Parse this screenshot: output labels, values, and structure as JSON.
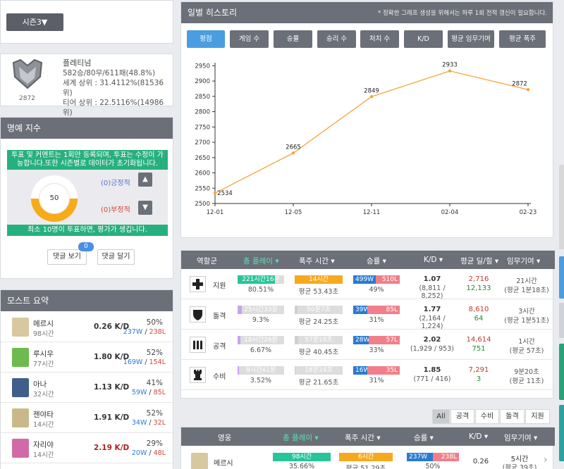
{
  "season": {
    "label": "시즌3▼"
  },
  "tier": {
    "name": "플레티넘",
    "record": "582승/80무/611패(48.8%)",
    "world": "세계 상위 : 31.4112%(81536위)",
    "tier_rank": "티어 상위 : 22.5116%(14986위)",
    "score": "2872"
  },
  "honor": {
    "title": "명예 지수",
    "notice": "투표 및 커멘트는 1회만 등록되며, 투표는 수정이 가능합니다.또한 시즌별로 데이터가 초기화됩니다.",
    "value": "50",
    "fill_fraction": 0.5,
    "positive": "(0)긍정적",
    "negative": "(0)부정적",
    "up": "▲",
    "down": "▼",
    "bottom": "최소 10명이 투표하면, 평가가 생깁니다.",
    "view_comments": "댓글 보기",
    "comment_count": "0",
    "write_comment": "댓글 달기"
  },
  "most": {
    "title": "모스트 요약",
    "heroes": [
      {
        "name": "메르시",
        "hours": "98시간",
        "kd": "0.26 K/D",
        "winrate": "50%",
        "w": "237W",
        "l": "238L",
        "kd_color": "#333333",
        "color": "#d8c8a0"
      },
      {
        "name": "루시우",
        "hours": "77시간",
        "kd": "1.80 K/D",
        "winrate": "52%",
        "w": "169W",
        "l": "154L",
        "kd_color": "#333333",
        "color": "#6dbb4e"
      },
      {
        "name": "아나",
        "hours": "32시간",
        "kd": "1.13 K/D",
        "winrate": "41%",
        "w": "59W",
        "l": "85L",
        "kd_color": "#333333",
        "color": "#3e5f8a"
      },
      {
        "name": "젠야타",
        "hours": "14시간",
        "kd": "1.91 K/D",
        "winrate": "52%",
        "w": "34W",
        "l": "32L",
        "kd_color": "#333333",
        "color": "#c9b98a"
      },
      {
        "name": "자리야",
        "hours": "14시간",
        "kd": "2.19 K/D",
        "winrate": "29%",
        "w": "20W",
        "l": "48L",
        "kd_color": "#b02020",
        "color": "#d16ba8"
      }
    ]
  },
  "history": {
    "title": "일별 히스토리",
    "note": "* 정확한 그래프 생성을 위해서는 하루 1회 전적 갱신이 필요합니다.",
    "tabs": [
      "평점",
      "게임 수",
      "승률",
      "승리 수",
      "처치 수",
      "K/D",
      "평균 임무기여",
      "평균 폭주"
    ]
  },
  "chart_data": {
    "type": "line",
    "x": [
      "12-01",
      "12-05",
      "12-11",
      "02-04",
      "02-23"
    ],
    "values": [
      2534,
      2665,
      2849,
      2933,
      2872
    ],
    "yticks": [
      2500,
      2550,
      2600,
      2650,
      2700,
      2750,
      2800,
      2850,
      2900,
      2950
    ],
    "ylim": [
      2500,
      2960
    ],
    "color": "#f7a43b"
  },
  "roles": {
    "headers": [
      "역할군",
      "총 플레이 ▾",
      "폭주 시간 ▾",
      "승률 ▾",
      "K/D ▾",
      "평균 딜/힐 ▾",
      "임무기여 ▾"
    ],
    "rows": [
      {
        "name": "지원",
        "icon": "plus-icon",
        "play": "221시간16분",
        "play_pct": "80.51%",
        "play_fill": 0.805,
        "burst": "14시간",
        "burst_avg": "평균 53.43초",
        "burst_fill": 1.0,
        "w": "499W",
        "l": "510L",
        "w_frac": 0.49,
        "wr": "49%",
        "kd": "1.07",
        "kd_sub": "(8,811 / 8,252)",
        "dmg": "2,716",
        "heal": "12,133",
        "obj": "21시간",
        "obj_sub": "(평균 1분18초)"
      },
      {
        "name": "돌격",
        "icon": "shield-icon",
        "play": "25시간33분",
        "play_pct": "9.3%",
        "play_fill": 0.093,
        "burst": "50분7초",
        "burst_avg": "평균 24.25초",
        "burst_fill": 0.06,
        "w": "39W",
        "l": "85L",
        "w_frac": 0.31,
        "wr": "31%",
        "kd": "1.77",
        "kd_sub": "(2,164 / 1,224)",
        "dmg": "8,610",
        "heal": "64",
        "obj": "3시간",
        "obj_sub": "(평균 1분51초)"
      },
      {
        "name": "공격",
        "icon": "bullets-icon",
        "play": "18시간26분",
        "play_pct": "6.67%",
        "play_fill": 0.067,
        "burst": "57분18초",
        "burst_avg": "평균 40.45초",
        "burst_fill": 0.07,
        "w": "28W",
        "l": "57L",
        "w_frac": 0.33,
        "wr": "33%",
        "kd": "2.02",
        "kd_sub": "(1,929 / 953)",
        "dmg": "14,614",
        "heal": "751",
        "obj": "1시간",
        "obj_sub": "(평균 57초)"
      },
      {
        "name": "수비",
        "icon": "rook-icon",
        "play": "9시간41분",
        "play_pct": "3.52%",
        "play_fill": 0.035,
        "burst": "18분24초",
        "burst_avg": "평균 21.65초",
        "burst_fill": 0.02,
        "w": "16W",
        "l": "35L",
        "w_frac": 0.31,
        "wr": "31%",
        "kd": "1.85",
        "kd_sub": "(771 / 416)",
        "dmg": "7,291",
        "heal": "3",
        "obj": "9분20초",
        "obj_sub": "(평균 11초)"
      }
    ]
  },
  "filters": [
    "All",
    "공격",
    "수비",
    "돌격",
    "지원"
  ],
  "heroes_table": {
    "headers": [
      "영웅",
      "총 플레이 ▾",
      "폭주 시간 ▾",
      "승률 ▾",
      "K/D ▾",
      "임무기여 ▾"
    ],
    "row": {
      "name": "메르시",
      "play": "98시간",
      "play_pct": "35.66%",
      "burst": "6시간",
      "burst_avg": "평균 51.29초",
      "w": "237W",
      "l": "238L",
      "wr": "50%",
      "kd": "0.26",
      "obj": "5시간",
      "obj_sub": "(평균 39초)"
    }
  }
}
